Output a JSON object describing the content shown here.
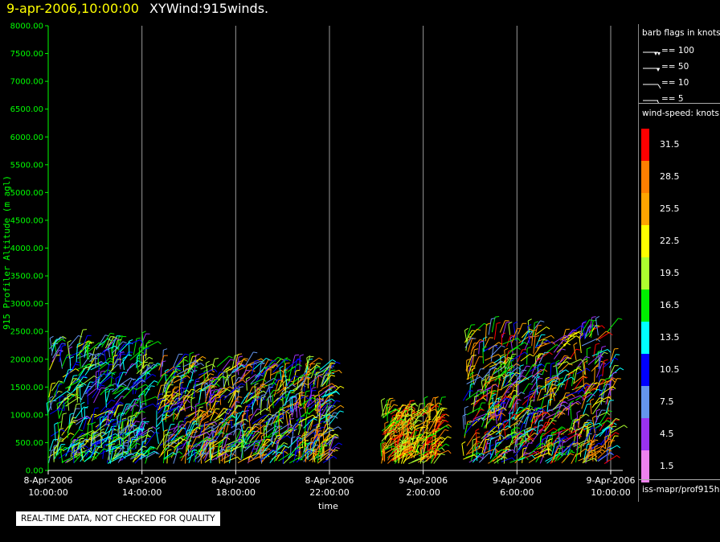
{
  "header": {
    "datetime": "9-apr-2006,10:00:00",
    "name": "XYWind:915winds."
  },
  "notice": "REAL-TIME DATA, NOT CHECKED FOR QUALITY",
  "legend": {
    "barb_title": "barb flags in knots",
    "barb_items": [
      "== 100",
      "== 50",
      "== 10",
      "== 5"
    ],
    "ws_title": "wind-speed: knots",
    "footer": "iss-mapr/prof915h"
  },
  "colors": {
    "grid": "#9a9a9a",
    "axis": "#00ff00",
    "yellow_title": "#ffff00"
  },
  "chart_data": {
    "type": "scatter",
    "title": "XYWind:915winds.",
    "xlabel": "time",
    "ylabel": "915 Profiler Altitude (m agl)",
    "ylim": [
      0,
      8000
    ],
    "yticks": [
      "0.00",
      "500.00",
      "1000.00",
      "1500.00",
      "2000.00",
      "2500.00",
      "3000.00",
      "3500.00",
      "4000.00",
      "4500.00",
      "5000.00",
      "5500.00",
      "6000.00",
      "6500.00",
      "7000.00",
      "7500.00",
      "8000.00"
    ],
    "xlim": [
      "2006-04-08 10:00",
      "2006-04-09 10:00"
    ],
    "xticks": [
      {
        "date": "8-Apr-2006",
        "time": "10:00:00"
      },
      {
        "date": "8-Apr-2006",
        "time": "14:00:00"
      },
      {
        "date": "8-Apr-2006",
        "time": "18:00:00"
      },
      {
        "date": "8-Apr-2006",
        "time": "22:00:00"
      },
      {
        "date": "9-Apr-2006",
        "time": "2:00:00"
      },
      {
        "date": "9-Apr-2006",
        "time": "6:00:00"
      },
      {
        "date": "9-Apr-2006",
        "time": "10:00:00"
      }
    ],
    "grid": "vertical",
    "colorbar": {
      "levels": [
        "1.5",
        "4.5",
        "7.5",
        "10.5",
        "13.5",
        "16.5",
        "19.5",
        "22.5",
        "25.5",
        "28.5",
        "31.5"
      ],
      "colors": [
        "#ee82ee",
        "#9a32f0",
        "#6495ed",
        "#0000ff",
        "#00ffff",
        "#00ee00",
        "#adff2f",
        "#ffff00",
        "#ffa500",
        "#ff7f00",
        "#ff0000"
      ]
    },
    "data_regions": [
      {
        "start_hour": 0.0,
        "end_hour": 4.2,
        "max_alt": 2300,
        "speed_knots": [
          5,
          22
        ]
      },
      {
        "start_hour": 4.6,
        "end_hour": 12.0,
        "max_alt": 1900,
        "speed_knots": [
          4,
          30
        ]
      },
      {
        "start_hour": 14.2,
        "end_hour": 16.6,
        "max_alt": 1050,
        "speed_knots": [
          16,
          32
        ]
      },
      {
        "start_hour": 17.7,
        "end_hour": 24.0,
        "max_alt": 2500,
        "speed_knots": [
          3,
          32
        ]
      }
    ]
  }
}
